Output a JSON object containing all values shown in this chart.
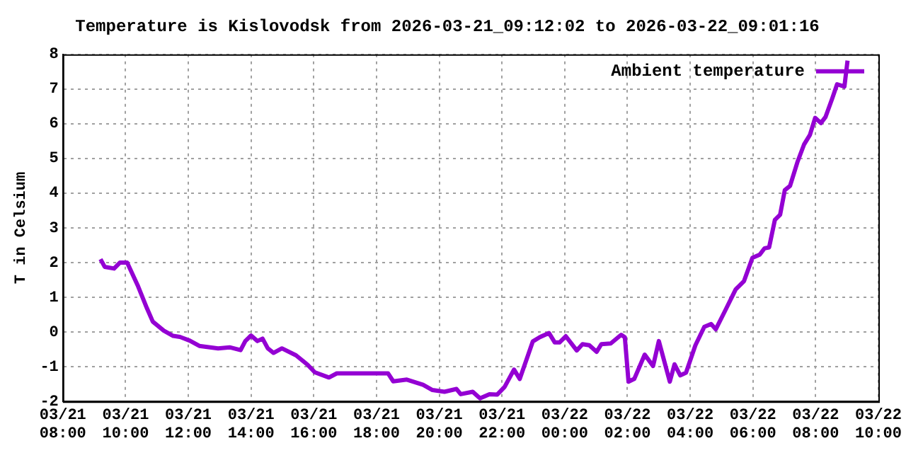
{
  "chart_data": {
    "type": "line",
    "title": "Temperature is Kislovodsk from 2026-03-21_09:12:02 to 2026-03-22_09:01:16",
    "ylabel": "T in Celsium",
    "xlim": [
      "2026-03-21T08:00",
      "2026-03-22T10:00"
    ],
    "xticks": [
      {
        "value": "2026-03-21T08:00",
        "label": "03/21 08:00"
      },
      {
        "value": "2026-03-21T10:00",
        "label": "03/21 10:00"
      },
      {
        "value": "2026-03-21T12:00",
        "label": "03/21 12:00"
      },
      {
        "value": "2026-03-21T14:00",
        "label": "03/21 14:00"
      },
      {
        "value": "2026-03-21T16:00",
        "label": "03/21 16:00"
      },
      {
        "value": "2026-03-21T18:00",
        "label": "03/21 18:00"
      },
      {
        "value": "2026-03-21T20:00",
        "label": "03/21 20:00"
      },
      {
        "value": "2026-03-21T22:00",
        "label": "03/21 22:00"
      },
      {
        "value": "2026-03-22T00:00",
        "label": "03/22 00:00"
      },
      {
        "value": "2026-03-22T02:00",
        "label": "03/22 02:00"
      },
      {
        "value": "2026-03-22T04:00",
        "label": "03/22 04:00"
      },
      {
        "value": "2026-03-22T06:00",
        "label": "03/22 06:00"
      },
      {
        "value": "2026-03-22T08:00",
        "label": "03/22 08:00"
      },
      {
        "value": "2026-03-22T10:00",
        "label": "03/22 10:00"
      }
    ],
    "ylim": [
      -2,
      8
    ],
    "yticks": [
      -2,
      -1,
      0,
      1,
      2,
      3,
      4,
      5,
      6,
      7,
      8
    ],
    "grid": true,
    "legend": "top right",
    "line_style": "solid",
    "series": [
      {
        "name": "Ambient temperature",
        "color": "#9400d3",
        "x": [
          "2026-03-21T09:12",
          "2026-03-21T09:20",
          "2026-03-21T09:38",
          "2026-03-21T09:49",
          "2026-03-21T10:03",
          "2026-03-21T10:23",
          "2026-03-21T10:41",
          "2026-03-21T10:52",
          "2026-03-21T11:13",
          "2026-03-21T11:31",
          "2026-03-21T11:44",
          "2026-03-21T12:03",
          "2026-03-21T12:21",
          "2026-03-21T12:57",
          "2026-03-21T13:19",
          "2026-03-21T13:40",
          "2026-03-21T13:49",
          "2026-03-21T14:00",
          "2026-03-21T14:12",
          "2026-03-21T14:22",
          "2026-03-21T14:32",
          "2026-03-21T14:43",
          "2026-03-21T14:59",
          "2026-03-21T15:26",
          "2026-03-21T15:48",
          "2026-03-21T16:02",
          "2026-03-21T16:29",
          "2026-03-21T16:44",
          "2026-03-21T18:22",
          "2026-03-21T18:32",
          "2026-03-21T18:58",
          "2026-03-21T19:29",
          "2026-03-21T19:47",
          "2026-03-21T20:10",
          "2026-03-21T20:33",
          "2026-03-21T20:41",
          "2026-03-21T21:04",
          "2026-03-21T21:18",
          "2026-03-21T21:36",
          "2026-03-21T21:51",
          "2026-03-21T22:05",
          "2026-03-21T22:23",
          "2026-03-21T22:34",
          "2026-03-21T22:59",
          "2026-03-21T23:12",
          "2026-03-21T23:30",
          "2026-03-21T23:41",
          "2026-03-21T23:50",
          "2026-03-22T00:02",
          "2026-03-22T00:23",
          "2026-03-22T00:34",
          "2026-03-22T00:47",
          "2026-03-22T01:01",
          "2026-03-22T01:10",
          "2026-03-22T01:28",
          "2026-03-22T01:48",
          "2026-03-22T01:55",
          "2026-03-22T02:02",
          "2026-03-22T02:13",
          "2026-03-22T02:33",
          "2026-03-22T02:49",
          "2026-03-22T03:00",
          "2026-03-22T03:21",
          "2026-03-22T03:30",
          "2026-03-22T03:41",
          "2026-03-22T03:52",
          "2026-03-22T04:10",
          "2026-03-22T04:27",
          "2026-03-22T04:40",
          "2026-03-22T04:49",
          "2026-03-22T05:09",
          "2026-03-22T05:27",
          "2026-03-22T05:43",
          "2026-03-22T05:59",
          "2026-03-22T06:13",
          "2026-03-22T06:22",
          "2026-03-22T06:31",
          "2026-03-22T06:42",
          "2026-03-22T06:52",
          "2026-03-22T07:01",
          "2026-03-22T07:11",
          "2026-03-22T07:25",
          "2026-03-22T07:38",
          "2026-03-22T07:49",
          "2026-03-22T07:59",
          "2026-03-22T08:10",
          "2026-03-22T08:19",
          "2026-03-22T08:32",
          "2026-03-22T08:41",
          "2026-03-22T08:55",
          "2026-03-22T09:01"
        ],
        "values": [
          2.1,
          1.88,
          1.83,
          2.0,
          2.0,
          1.35,
          0.68,
          0.3,
          0.04,
          -0.11,
          -0.14,
          -0.25,
          -0.4,
          -0.47,
          -0.44,
          -0.52,
          -0.26,
          -0.1,
          -0.26,
          -0.19,
          -0.47,
          -0.6,
          -0.47,
          -0.67,
          -0.94,
          -1.16,
          -1.31,
          -1.19,
          -1.19,
          -1.42,
          -1.37,
          -1.52,
          -1.67,
          -1.72,
          -1.64,
          -1.79,
          -1.72,
          -1.91,
          -1.79,
          -1.8,
          -1.58,
          -1.08,
          -1.35,
          -0.27,
          -0.15,
          -0.03,
          -0.3,
          -0.3,
          -0.12,
          -0.53,
          -0.35,
          -0.38,
          -0.57,
          -0.35,
          -0.33,
          -0.08,
          -0.15,
          -1.43,
          -1.35,
          -0.65,
          -0.98,
          -0.26,
          -1.43,
          -0.93,
          -1.25,
          -1.17,
          -0.38,
          0.15,
          0.23,
          0.08,
          0.68,
          1.23,
          1.47,
          2.14,
          2.23,
          2.41,
          2.44,
          3.23,
          3.38,
          4.09,
          4.21,
          4.89,
          5.41,
          5.68,
          6.17,
          6.02,
          6.2,
          6.74,
          7.14,
          7.07,
          7.82
        ]
      }
    ]
  }
}
